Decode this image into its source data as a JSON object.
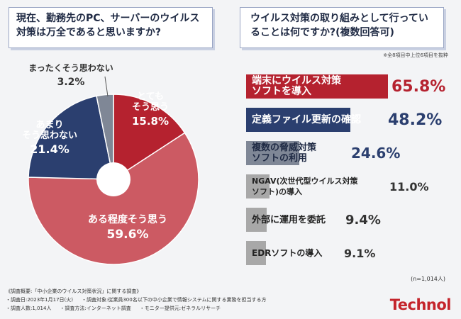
{
  "q1": {
    "title": "現在、勤務先のPC、サーバーのウイルス対策は万全であると思いますか?"
  },
  "q2": {
    "title": "ウイルス対策の取り組みとして行っていることは何ですか?(複数回答可)",
    "note": "※全8項目中上位6項目を抜粋",
    "n_note": "(n=1,014人)"
  },
  "colors": {
    "red": "#b5222f",
    "navy": "#2b3f6f",
    "pink": "#cc5a63",
    "gray": "#7f8796",
    "lightgray": "#a8a8a8"
  },
  "chart_data": [
    {
      "type": "pie",
      "title": "現在、勤務先のPC、サーバーのウイルス対策は万全であると思いますか?",
      "slices": [
        {
          "label": "とても\nそう思う",
          "value": 15.8,
          "display": "15.8%",
          "color": "#b5222f"
        },
        {
          "label": "ある程度そう思う",
          "value": 59.6,
          "display": "59.6%",
          "color": "#cc5a63"
        },
        {
          "label": "あまり\nそう思わない",
          "value": 21.4,
          "display": "21.4%",
          "color": "#2b3f6f"
        },
        {
          "label": "まったくそう思わない",
          "value": 3.2,
          "display": "3.2%",
          "color": "#7f8796"
        }
      ]
    },
    {
      "type": "bar",
      "title": "ウイルス対策の取り組みとして行っていることは何ですか?(複数回答可)",
      "categories": [
        "端末にウイルス対策\nソフトを導入",
        "定義ファイル更新の確認",
        "複数の脅威対策\nソフトの利用",
        "NGAV(次世代型ウイルス対策\nソフト)の導入",
        "外部に運用を委託",
        "EDRソフトの導入"
      ],
      "values": [
        65.8,
        48.2,
        24.6,
        11.0,
        9.4,
        9.1
      ],
      "labels": [
        "65.8%",
        "48.2%",
        "24.6%",
        "11.0%",
        "9.4%",
        "9.1%"
      ],
      "colors": [
        "#b5222f",
        "#2b3f6f",
        "#7f8796",
        "#a8a8a8",
        "#a8a8a8",
        "#a8a8a8"
      ]
    }
  ],
  "footer": {
    "line1": "《調査概要:「中小企業のウイルス対策状況」に関する調査》",
    "line2a": "・調査日:2023年1月17日(火)",
    "line2b": "・調査対象:従業員300名以下の中小企業で情報システムに関する業務を担当する方",
    "line3a": "・調査人数:1,014人",
    "line3b": "・調査方法:インターネット調査",
    "line3c": "・モニター提供元:ゼネラルリサーチ"
  },
  "logo": "Technol"
}
